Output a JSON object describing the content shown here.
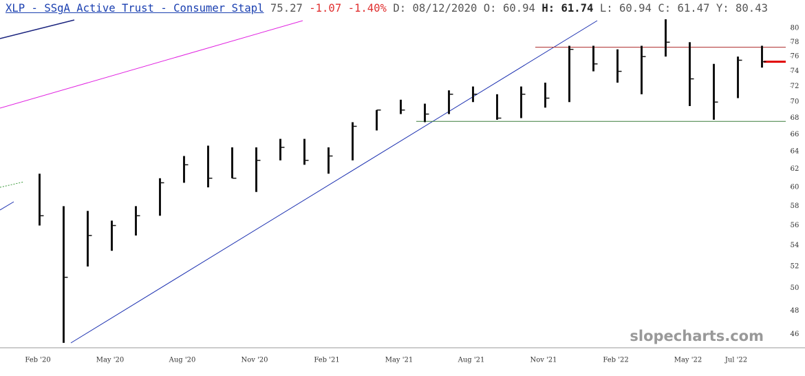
{
  "header": {
    "symbol": "XLP - SSgA Active Trust - Consumer Stapl",
    "last": 75.27,
    "change": -1.07,
    "change_pct": "-1.40%",
    "date_label": "D:",
    "date": "08/12/2020",
    "open_label": "O:",
    "open": 60.94,
    "high_label": "H:",
    "high": 61.74,
    "low_label": "L:",
    "low": 60.94,
    "close_label": "C:",
    "close": 61.47,
    "year_label": "Y:",
    "year": 80.43
  },
  "chart_data": {
    "type": "ohlc",
    "categories": [
      "Feb '20",
      null,
      null,
      "May '20",
      null,
      null,
      "Aug '20",
      null,
      null,
      "Nov '20",
      null,
      null,
      "Feb '21",
      null,
      null,
      "May '21",
      null,
      null,
      "Aug '21",
      null,
      null,
      "Nov '21",
      null,
      null,
      "Feb '22",
      null,
      null,
      "May '22",
      null,
      "Jul '22",
      null
    ],
    "high": [
      61.5,
      58,
      57.5,
      56.5,
      58,
      61,
      63.5,
      64.7,
      64.5,
      64.5,
      65.5,
      65.5,
      64.5,
      67.5,
      69,
      70.3,
      69.8,
      71.5,
      72,
      71,
      72,
      72.5,
      77.5,
      77.5,
      77,
      77.5,
      81.3,
      78,
      75,
      76,
      77.5
    ],
    "low": [
      56,
      45.3,
      52,
      53.5,
      55,
      57,
      60.5,
      60,
      61,
      59.5,
      63,
      62.5,
      61.5,
      63,
      66.5,
      68.5,
      67.5,
      68.5,
      70,
      67.8,
      68,
      69.3,
      70,
      74,
      72.5,
      71,
      76,
      69.5,
      67.8,
      70.5,
      74.5
    ],
    "close": [
      57,
      51,
      55,
      56,
      57,
      60.5,
      62.5,
      61,
      61,
      63,
      64.5,
      63,
      63.5,
      67,
      69,
      69,
      68.5,
      71,
      71,
      68,
      71,
      70.5,
      77,
      75,
      74,
      76,
      78,
      73,
      70,
      75.5,
      75.3
    ],
    "color": "#111111",
    "ylim": [
      44.9,
      81.3
    ],
    "yticks": [
      46,
      48,
      50,
      52,
      54,
      56,
      58,
      60,
      62,
      64,
      66,
      68,
      70,
      72,
      74,
      76,
      78,
      80
    ],
    "log_scale": true,
    "hlines": [
      {
        "value": 77.3,
        "color": "#b03030"
      },
      {
        "value": 67.6,
        "color": "#3a7d3a"
      },
      {
        "value": 75.3,
        "color": "#e00000"
      }
    ],
    "watermark": "slopecharts.com"
  }
}
